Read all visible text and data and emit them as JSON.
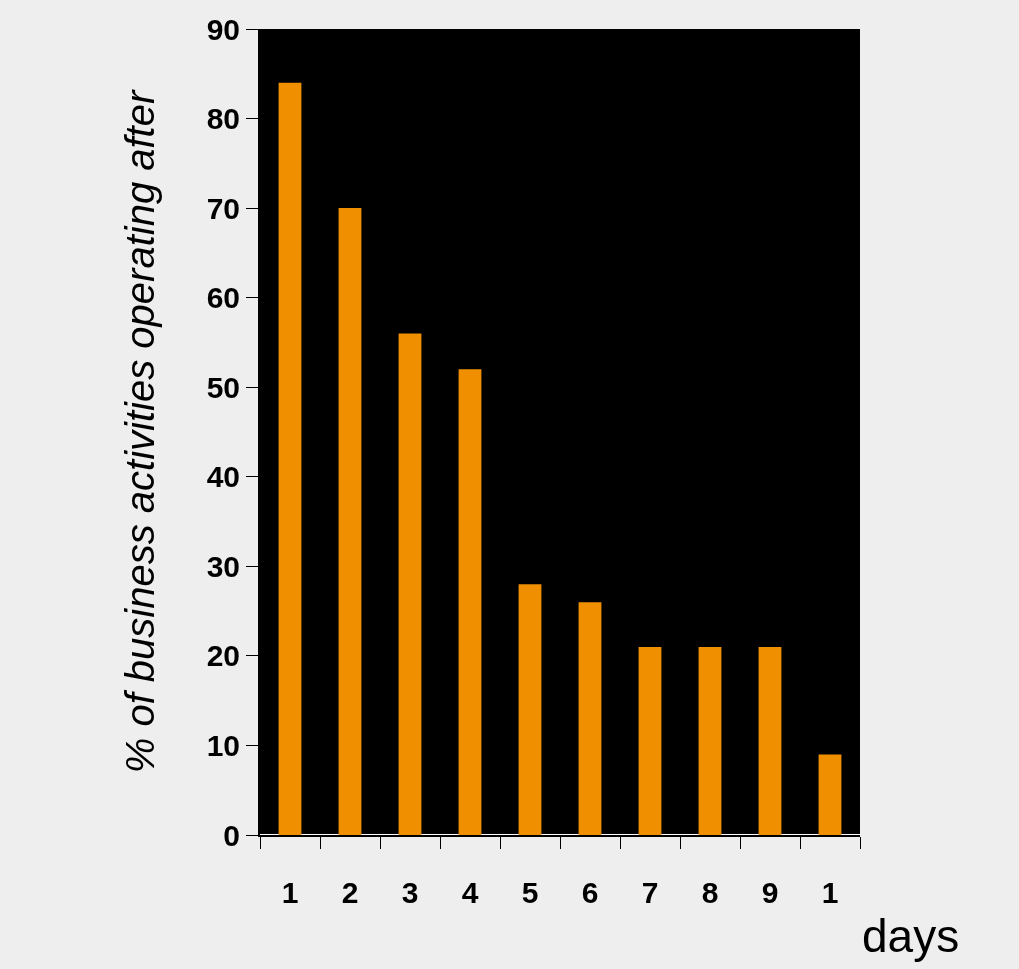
{
  "chart_data": {
    "type": "bar",
    "xlabel": "days",
    "ylabel": "% of business activities operating after",
    "categories": [
      "1",
      "2",
      "3",
      "4",
      "5",
      "6",
      "7",
      "8",
      "9",
      "1"
    ],
    "values": [
      84,
      70,
      56,
      52,
      28,
      26,
      21,
      21,
      21,
      9
    ],
    "color": "#f09000",
    "ylim": [
      0,
      90
    ],
    "yticks": [
      0,
      10,
      20,
      30,
      40,
      50,
      60,
      70,
      80,
      90
    ],
    "grid": false
  }
}
